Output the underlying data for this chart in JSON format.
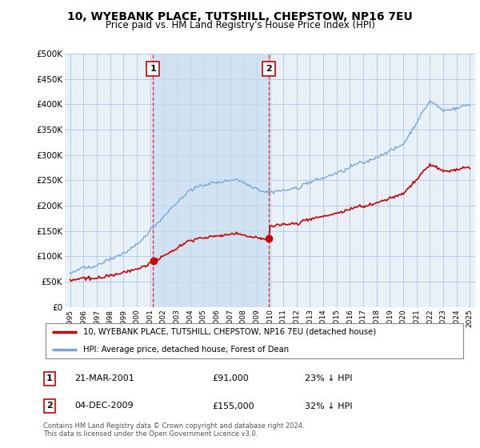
{
  "title": "10, WYEBANK PLACE, TUTSHILL, CHEPSTOW, NP16 7EU",
  "subtitle": "Price paid vs. HM Land Registry's House Price Index (HPI)",
  "hpi_color": "#7aa8d4",
  "hpi_fill_color": "#d0e4f7",
  "price_color": "#cc0000",
  "dashed_color": "#cc0000",
  "plot_bg": "#e8f0f8",
  "ylim": [
    0,
    500000
  ],
  "yticks": [
    0,
    50000,
    100000,
    150000,
    200000,
    250000,
    300000,
    350000,
    400000,
    450000,
    500000
  ],
  "ytick_labels": [
    "£0",
    "£50K",
    "£100K",
    "£150K",
    "£200K",
    "£250K",
    "£300K",
    "£350K",
    "£400K",
    "£450K",
    "£500K"
  ],
  "sale1_date": "21-MAR-2001",
  "sale1_price": 91000,
  "sale1_pct": "23% ↓ HPI",
  "sale1_x": 2001.22,
  "sale2_date": "04-DEC-2009",
  "sale2_price": 155000,
  "sale2_pct": "32% ↓ HPI",
  "sale2_x": 2009.92,
  "legend_line1": "10, WYEBANK PLACE, TUTSHILL, CHEPSTOW, NP16 7EU (detached house)",
  "legend_line2": "HPI: Average price, detached house, Forest of Dean",
  "footnote": "Contains HM Land Registry data © Crown copyright and database right 2024.\nThis data is licensed under the Open Government Licence v3.0.",
  "xlim_left": 1994.6,
  "xlim_right": 2025.4
}
